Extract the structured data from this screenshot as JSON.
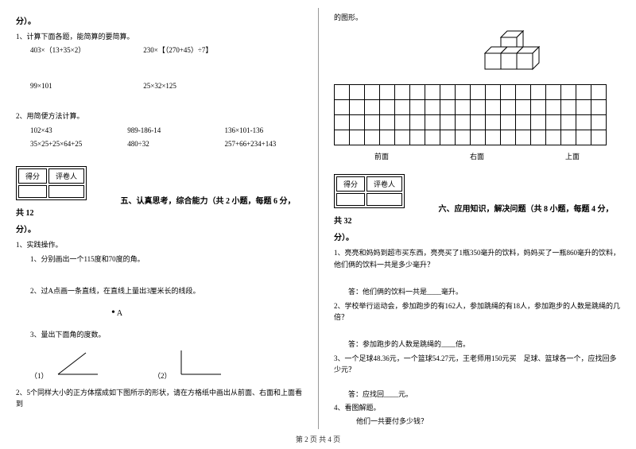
{
  "left": {
    "fen": "分）。",
    "q1": "1、计算下面各题，能简算的要简算。",
    "q1a": "403×（13+35×2）",
    "q1b": "230×【（270+45）÷7】",
    "q1c": "99×101",
    "q1d": "25×32×125",
    "q2": "2、用简便方法计算。",
    "q2a": "102×43",
    "q2b": "989-186-14",
    "q2c": "136×101-136",
    "q2d": "35×25+25×64+25",
    "q2e": "480÷32",
    "q2f": "257+66+234+143",
    "scoreHead1": "得分",
    "scoreHead2": "评卷人",
    "sec5": "五、认真思考，综合能力（共 2 小题，每题 6 分，共 12",
    "fen2": "分）。",
    "p1": "1、实践操作。",
    "p1a": "1、分别画出一个115度和70度的角。",
    "p1b": "2、过A点画一条直线，在直线上量出3厘米长的线段。",
    "aLabel": "A",
    "p1c": "3、量出下面角的度数。",
    "ang1": "（1）",
    "ang2": "（2）",
    "p2": "2、5个同样大小的正方体摆成如下图所示的形状，请在方格纸中画出从前面、右面和上面看到"
  },
  "right": {
    "top": "的图形。",
    "gridLabels": [
      "前面",
      "右面",
      "上面"
    ],
    "scoreHead1": "得分",
    "scoreHead2": "评卷人",
    "sec6": "六、应用知识，解决问题（共 8 小题，每题 4 分，共 32",
    "fen": "分）。",
    "r1": "1、亮亮和妈妈到超市买东西，亮亮买了1瓶350毫升的饮料，妈妈买了一瓶860毫升的饮料，他们俩的饮料一共是多少毫升？",
    "r1ans": "答：他们俩的饮料一共是____毫升。",
    "r2": "2、学校举行运动会，参加跑步的有162人，参加跳绳的有18人，参加跑步的人数是跳绳的几倍？",
    "r2ans": "答：参加跑步的人数是跳绳的____倍。",
    "r3": "3、一个足球48.36元，一个篮球54.27元，王老师用150元买　足球、篮球各一个，应找回多少元？",
    "r3ans": "答：应找回____元。",
    "r4": "4、看图解题。",
    "r4a": "他们一共要付多少钱？"
  },
  "footer": "第 2 页 共 4 页",
  "grid": {
    "rows": 4,
    "cols": 18
  },
  "colors": {
    "line": "#000000",
    "bg": "#ffffff"
  }
}
